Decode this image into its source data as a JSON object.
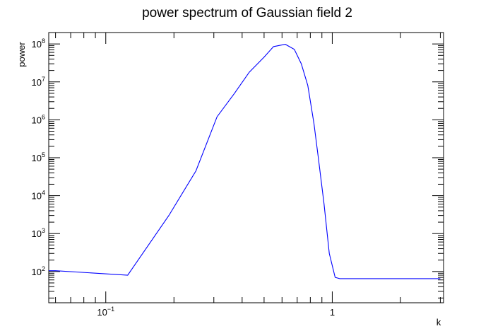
{
  "chart_data": {
    "type": "line",
    "title": "power spectrum of Gaussian field 2",
    "xlabel": "k",
    "ylabel": "power",
    "xscale": "log",
    "yscale": "log",
    "xlim": [
      0.056,
      3.1
    ],
    "ylim": [
      15,
      200000000
    ],
    "x_ticks": [
      {
        "value": 0.1,
        "base": "10",
        "exp": "−1"
      },
      {
        "value": 1,
        "base": "1",
        "exp": ""
      }
    ],
    "y_ticks": [
      {
        "value": 100,
        "base": "10",
        "exp": "2"
      },
      {
        "value": 1000,
        "base": "10",
        "exp": "3"
      },
      {
        "value": 10000,
        "base": "10",
        "exp": "4"
      },
      {
        "value": 100000,
        "base": "10",
        "exp": "5"
      },
      {
        "value": 1000000,
        "base": "10",
        "exp": "6"
      },
      {
        "value": 10000000,
        "base": "10",
        "exp": "7"
      },
      {
        "value": 100000000,
        "base": "10",
        "exp": "8"
      }
    ],
    "grid": false,
    "legend": "none",
    "series": [
      {
        "color": "#0000ff",
        "x": [
          0.056,
          0.06,
          0.125,
          0.19,
          0.25,
          0.31,
          0.37,
          0.43,
          0.5,
          0.55,
          0.62,
          0.68,
          0.73,
          0.78,
          0.83,
          0.87,
          0.92,
          0.97,
          1.03,
          1.08,
          1.15,
          1.2,
          3.0
        ],
        "y": [
          105,
          105,
          80,
          3000,
          45000,
          1200000,
          5000000,
          18000000,
          45000000,
          85000000,
          98000000,
          72000000,
          30000000,
          8000000,
          800000,
          90000,
          6000,
          300,
          70,
          65,
          65,
          65,
          65
        ]
      }
    ]
  }
}
